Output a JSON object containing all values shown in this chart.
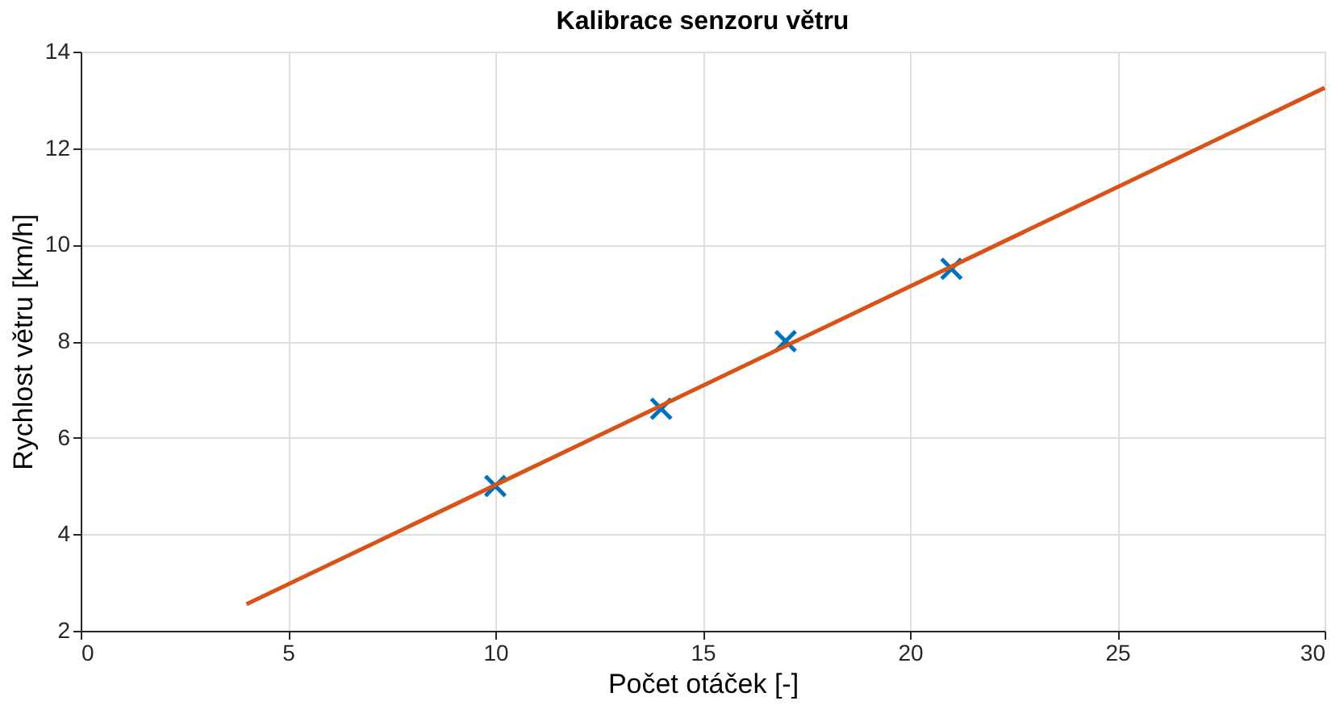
{
  "chart_data": {
    "type": "scatter",
    "title": "Kalibrace senzoru větru",
    "xlabel": "Počet otáček [-]",
    "ylabel": "Rychlost větru [km/h]",
    "xlim": [
      0,
      30
    ],
    "xticks": [
      0,
      5,
      10,
      15,
      20,
      25,
      30
    ],
    "ylim": [
      2,
      14
    ],
    "yticks": [
      2,
      4,
      6,
      8,
      10,
      12,
      14
    ],
    "grid": true,
    "series": [
      {
        "color": "#0072bd",
        "marker": "cross",
        "x": [
          10,
          14,
          17,
          21
        ],
        "values": [
          5,
          6.6,
          8,
          9.5
        ]
      },
      {
        "type": "line",
        "color": "#d95319",
        "line_style": "solid",
        "x": [
          4,
          30
        ],
        "values": [
          2.55,
          13.25
        ]
      }
    ]
  }
}
